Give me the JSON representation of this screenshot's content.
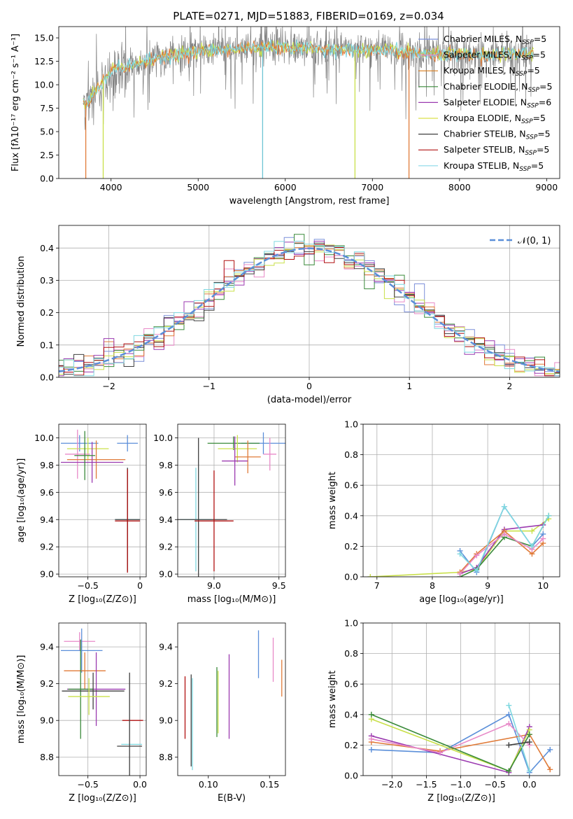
{
  "figure": {
    "title": "PLATE=0271, MJD=51883, FIBERID=0169, z=0.034"
  },
  "palette": {
    "grid": "#b0b0b0",
    "gauss": "#5b8fd9",
    "spectrum_gray": "#808080",
    "spectrum_cyan": "#7fd8e0",
    "spectrum_yellow": "#c9e04a",
    "spectrum_orange": "#e07b39"
  },
  "chart_data": [
    {
      "id": "spectrum",
      "type": "line",
      "title": "PLATE=0271, MJD=51883, FIBERID=0169, z=0.034",
      "xlabel": "wavelength [Angstrom, rest frame]",
      "ylabel": "Flux [fλ10⁻¹⁷ erg cm⁻² s⁻¹ A⁻¹]",
      "xlim": [
        3400,
        9150
      ],
      "ylim": [
        0,
        16.2
      ],
      "xticks": [
        4000,
        5000,
        6000,
        7000,
        8000,
        9000
      ],
      "yticks": [
        0.0,
        2.5,
        5.0,
        7.5,
        10.0,
        12.5,
        15.0
      ],
      "grid": false,
      "legend_position": "top-right",
      "legend": [
        {
          "name": "Chabrier MILES, N_SSP=5",
          "color": "#7b8fd9"
        },
        {
          "name": "Salpeter MILES, N_SSP=5",
          "color": "#d98fd9"
        },
        {
          "name": "Kroupa MILES, N_SSP=5",
          "color": "#d97b1a"
        },
        {
          "name": "Chabrier ELODIE, N_SSP=5",
          "color": "#3a8a3a"
        },
        {
          "name": "Salpeter ELODIE, N_SSP=6",
          "color": "#9b3ab0"
        },
        {
          "name": "Kroupa ELODIE, N_SSP=5",
          "color": "#d9e04a"
        },
        {
          "name": "Chabrier STELIB, N_SSP=5",
          "color": "#404040"
        },
        {
          "name": "Salpeter STELIB, N_SSP=5",
          "color": "#b01010"
        },
        {
          "name": "Kroupa STELIB, N_SSP=5",
          "color": "#8ad8e8"
        }
      ],
      "continuum": [
        [
          3680,
          8.5
        ],
        [
          3720,
          7.8
        ],
        [
          3800,
          9.0
        ],
        [
          3900,
          10.3
        ],
        [
          4000,
          11.4
        ],
        [
          4100,
          11.8
        ],
        [
          4200,
          12.0
        ],
        [
          4300,
          12.2
        ],
        [
          4400,
          12.5
        ],
        [
          4500,
          12.9
        ],
        [
          4600,
          13.0
        ],
        [
          4700,
          13.1
        ],
        [
          4800,
          13.3
        ],
        [
          4900,
          13.4
        ],
        [
          5000,
          13.5
        ],
        [
          5100,
          13.7
        ],
        [
          5200,
          13.6
        ],
        [
          5300,
          13.7
        ],
        [
          5500,
          13.9
        ],
        [
          5700,
          14.0
        ],
        [
          5900,
          14.1
        ],
        [
          6100,
          13.9
        ],
        [
          6300,
          13.9
        ],
        [
          6500,
          13.8
        ],
        [
          6700,
          13.7
        ],
        [
          6900,
          13.7
        ],
        [
          7100,
          13.7
        ],
        [
          7300,
          13.6
        ],
        [
          7500,
          13.4
        ],
        [
          7700,
          13.2
        ],
        [
          7900,
          13.3
        ],
        [
          8100,
          13.2
        ],
        [
          8300,
          13.1
        ],
        [
          8500,
          13.2
        ],
        [
          8700,
          13.3
        ],
        [
          8850,
          13.4
        ]
      ],
      "model_dips": [
        {
          "x": 3710,
          "color": "#e07b39"
        },
        {
          "x": 3910,
          "color": "#c9e04a"
        },
        {
          "x": 5740,
          "color": "#6ec4d4"
        },
        {
          "x": 6800,
          "color": "#c9e04a"
        },
        {
          "x": 7420,
          "color": "#e07b39"
        }
      ]
    },
    {
      "id": "residuals",
      "type": "histogram",
      "xlabel": "(data-model)/error",
      "ylabel": "Normed distribution",
      "xlim": [
        -2.5,
        2.5
      ],
      "ylim": [
        0,
        0.47
      ],
      "xticks": [
        -2,
        -1,
        0,
        1,
        2
      ],
      "yticks": [
        0.0,
        0.1,
        0.2,
        0.3,
        0.4
      ],
      "grid": true,
      "legend_position": "top-right",
      "legend": [
        {
          "name": "𝒩(0, 1)",
          "style": "dashed"
        }
      ],
      "bin_width": 0.1,
      "series_colors": [
        "#7b8fd9",
        "#e88ac8",
        "#e07b39",
        "#3a8a3a",
        "#9b3ab0",
        "#c9e04a",
        "#404040",
        "#b01010",
        "#7fd8e0"
      ]
    },
    {
      "id": "age-vs-Z",
      "type": "errorbar",
      "xlabel": "Z [log₁₀(Z/Z⊙)]",
      "ylabel": "age  [log₁₀(age/yr)]",
      "xlim": [
        -0.78,
        0.06
      ],
      "ylim": [
        8.98,
        10.1
      ],
      "xticks": [
        -0.5,
        0.0
      ],
      "yticks": [
        9.0,
        9.2,
        9.4,
        9.6,
        9.8,
        10.0
      ],
      "grid": true,
      "points": [
        {
          "x": -0.58,
          "y": 9.96,
          "xerr": 0.18,
          "yerr": 0.06,
          "color": "#5b8fd9"
        },
        {
          "x": -0.12,
          "y": 9.96,
          "xerr": 0.1,
          "yerr": 0.06,
          "color": "#5b8fd9"
        },
        {
          "x": -0.5,
          "y": 9.92,
          "xerr": 0.2,
          "yerr": 0.08,
          "color": "#c9e04a"
        },
        {
          "x": -0.6,
          "y": 9.88,
          "xerr": 0.12,
          "yerr": 0.18,
          "color": "#e88ac8"
        },
        {
          "x": -0.42,
          "y": 9.84,
          "xerr": 0.28,
          "yerr": 0.14,
          "color": "#e07b39"
        },
        {
          "x": -0.46,
          "y": 9.82,
          "xerr": 0.3,
          "yerr": 0.15,
          "color": "#9b3ab0"
        },
        {
          "x": -0.53,
          "y": 9.87,
          "xerr": 0.1,
          "yerr": 0.18,
          "color": "#3a8a3a"
        },
        {
          "x": -0.12,
          "y": 9.4,
          "xerr": 0.12,
          "yerr": 0.38,
          "color": "#7fd8e0"
        },
        {
          "x": -0.12,
          "y": 9.4,
          "xerr": 0.12,
          "yerr": 0.38,
          "color": "#404040"
        },
        {
          "x": -0.12,
          "y": 9.39,
          "xerr": 0.12,
          "yerr": 0.38,
          "color": "#b01010"
        }
      ]
    },
    {
      "id": "age-vs-mass",
      "type": "errorbar",
      "xlabel": "mass [log₁₀(M/M⊙)]",
      "ylabel": "",
      "xlim": [
        8.72,
        9.55
      ],
      "ylim": [
        8.98,
        10.1
      ],
      "xticks": [
        9.0,
        9.5
      ],
      "yticks": [
        9.0,
        9.2,
        9.4,
        9.6,
        9.8,
        10.0
      ],
      "grid": true,
      "points": [
        {
          "x": 9.38,
          "y": 9.96,
          "xerr": 0.17,
          "yerr": 0.08,
          "color": "#5b8fd9"
        },
        {
          "x": 9.15,
          "y": 9.96,
          "xerr": 0.2,
          "yerr": 0.05,
          "color": "#3a8a3a"
        },
        {
          "x": 9.18,
          "y": 9.92,
          "xerr": 0.15,
          "yerr": 0.1,
          "color": "#c9e04a"
        },
        {
          "x": 9.43,
          "y": 9.88,
          "xerr": 0.05,
          "yerr": 0.12,
          "color": "#e88ac8"
        },
        {
          "x": 9.26,
          "y": 9.86,
          "xerr": 0.1,
          "yerr": 0.12,
          "color": "#e07b39"
        },
        {
          "x": 9.16,
          "y": 9.83,
          "xerr": 0.1,
          "yerr": 0.18,
          "color": "#9b3ab0"
        },
        {
          "x": 8.86,
          "y": 9.4,
          "xerr": 0.12,
          "yerr": 0.38,
          "color": "#7fd8e0"
        },
        {
          "x": 8.88,
          "y": 9.4,
          "xerr": 0.22,
          "yerr": 0.6,
          "color": "#404040"
        },
        {
          "x": 9.0,
          "y": 9.39,
          "xerr": 0.15,
          "yerr": 0.37,
          "color": "#b01010"
        }
      ]
    },
    {
      "id": "mass-weight-vs-age",
      "type": "line",
      "xlabel": "age  [log₁₀(age/yr)]",
      "ylabel": "mass weight",
      "xlim": [
        6.75,
        10.3
      ],
      "ylim": [
        0,
        1
      ],
      "xticks": [
        7,
        8,
        9,
        10
      ],
      "yticks": [
        0.0,
        0.2,
        0.4,
        0.6,
        0.8,
        1.0
      ],
      "grid": true,
      "series": [
        {
          "color": "#c9e04a",
          "points": [
            [
              6.88,
              0.0
            ],
            [
              8.5,
              0.03
            ],
            [
              8.8,
              0.05
            ],
            [
              9.3,
              0.3
            ],
            [
              9.8,
              0.3
            ],
            [
              10.1,
              0.38
            ]
          ]
        },
        {
          "color": "#5b8fd9",
          "points": [
            [
              8.5,
              0.17
            ],
            [
              8.8,
              0.03
            ],
            [
              9.3,
              0.46
            ],
            [
              9.8,
              0.2
            ],
            [
              10.0,
              0.28
            ]
          ]
        },
        {
          "color": "#9b3ab0",
          "points": [
            [
              8.5,
              0.02
            ],
            [
              8.8,
              0.06
            ],
            [
              9.3,
              0.31
            ],
            [
              10.0,
              0.34
            ]
          ]
        },
        {
          "color": "#e07b39",
          "points": [
            [
              8.5,
              0.03
            ],
            [
              8.8,
              0.15
            ],
            [
              9.3,
              0.3
            ],
            [
              9.8,
              0.15
            ],
            [
              10.0,
              0.22
            ]
          ]
        },
        {
          "color": "#3a8a3a",
          "points": [
            [
              8.5,
              0.0
            ],
            [
              8.8,
              0.05
            ],
            [
              9.3,
              0.26
            ],
            [
              9.8,
              0.2
            ],
            [
              10.1,
              0.4
            ]
          ]
        },
        {
          "color": "#e88ac8",
          "points": [
            [
              8.5,
              0.02
            ],
            [
              8.8,
              0.14
            ],
            [
              9.3,
              0.28
            ],
            [
              9.8,
              0.18
            ],
            [
              10.0,
              0.25
            ]
          ]
        },
        {
          "color": "#7fd8e0",
          "points": [
            [
              8.5,
              0.15
            ],
            [
              8.8,
              0.04
            ],
            [
              9.3,
              0.46
            ],
            [
              9.8,
              0.2
            ],
            [
              10.1,
              0.4
            ]
          ]
        }
      ]
    },
    {
      "id": "mass-vs-Z",
      "type": "errorbar",
      "xlabel": "Z [log₁₀(Z/Z⊙)]",
      "ylabel": "mass [log₁₀(M/M⊙)]",
      "xlim": [
        -0.78,
        0.06
      ],
      "ylim": [
        8.7,
        9.53
      ],
      "xticks": [
        -0.5,
        0.0
      ],
      "yticks": [
        8.8,
        9.0,
        9.2,
        9.4
      ],
      "grid": true,
      "points": [
        {
          "x": -0.58,
          "y": 9.43,
          "xerr": 0.15,
          "yerr": 0.05,
          "color": "#e88ac8"
        },
        {
          "x": -0.56,
          "y": 9.38,
          "xerr": 0.2,
          "yerr": 0.12,
          "color": "#5b8fd9"
        },
        {
          "x": -0.53,
          "y": 9.27,
          "xerr": 0.2,
          "yerr": 0.1,
          "color": "#e07b39"
        },
        {
          "x": -0.42,
          "y": 9.17,
          "xerr": 0.28,
          "yerr": 0.2,
          "color": "#9b3ab0"
        },
        {
          "x": -0.57,
          "y": 9.17,
          "xerr": 0.12,
          "yerr": 0.27,
          "color": "#3a8a3a"
        },
        {
          "x": -0.45,
          "y": 9.16,
          "xerr": 0.3,
          "yerr": 0.1,
          "color": "#404040"
        },
        {
          "x": -0.49,
          "y": 9.13,
          "xerr": 0.2,
          "yerr": 0.1,
          "color": "#c9e04a"
        },
        {
          "x": -0.07,
          "y": 9.0,
          "xerr": 0.1,
          "yerr": 0.0,
          "color": "#b01010"
        },
        {
          "x": -0.08,
          "y": 8.87,
          "xerr": 0.1,
          "yerr": 0.0,
          "color": "#7fd8e0"
        },
        {
          "x": -0.1,
          "y": 8.86,
          "xerr": 0.12,
          "yerr": 0.4,
          "color": "#404040"
        }
      ]
    },
    {
      "id": "mass-vs-ebv",
      "type": "errorbar",
      "xlabel": "E(B-V)",
      "ylabel": "",
      "xlim": [
        0.075,
        0.163
      ],
      "ylim": [
        8.7,
        9.53
      ],
      "xticks": [
        0.1,
        0.15
      ],
      "yticks": [
        8.8,
        9.0,
        9.2,
        9.4
      ],
      "grid": false,
      "points": [
        {
          "x": 0.081,
          "y": 9.07,
          "xerr": 0,
          "yerr": 0.17,
          "color": "#b01010"
        },
        {
          "x": 0.086,
          "y": 9.0,
          "xerr": 0,
          "yerr": 0.25,
          "color": "#404040"
        },
        {
          "x": 0.087,
          "y": 8.98,
          "xerr": 0,
          "yerr": 0.25,
          "color": "#7fd8e0"
        },
        {
          "x": 0.107,
          "y": 9.1,
          "xerr": 0,
          "yerr": 0.19,
          "color": "#3a8a3a"
        },
        {
          "x": 0.108,
          "y": 9.1,
          "xerr": 0,
          "yerr": 0.17,
          "color": "#c9e04a"
        },
        {
          "x": 0.117,
          "y": 9.13,
          "xerr": 0,
          "yerr": 0.23,
          "color": "#9b3ab0"
        },
        {
          "x": 0.141,
          "y": 9.36,
          "xerr": 0,
          "yerr": 0.13,
          "color": "#5b8fd9"
        },
        {
          "x": 0.153,
          "y": 9.33,
          "xerr": 0,
          "yerr": 0.12,
          "color": "#e88ac8"
        },
        {
          "x": 0.16,
          "y": 9.23,
          "xerr": 0,
          "yerr": 0.1,
          "color": "#e07b39"
        }
      ]
    },
    {
      "id": "mass-weight-vs-Z",
      "type": "line",
      "xlabel": "Z [log₁₀(Z/Z⊙)]",
      "ylabel": "mass weight",
      "xlim": [
        -2.42,
        0.44
      ],
      "ylim": [
        0,
        1
      ],
      "xticks": [
        -2.0,
        -1.5,
        -1.0,
        -0.5,
        0.0
      ],
      "yticks": [
        0.0,
        0.2,
        0.4,
        0.6,
        0.8,
        1.0
      ],
      "grid": true,
      "series": [
        {
          "color": "#5b8fd9",
          "points": [
            [
              -2.3,
              0.17
            ],
            [
              -1.3,
              0.15
            ],
            [
              -0.3,
              0.4
            ],
            [
              0.0,
              0.02
            ],
            [
              0.3,
              0.17
            ]
          ]
        },
        {
          "color": "#e07b39",
          "points": [
            [
              -2.3,
              0.22
            ],
            [
              -1.3,
              0.16
            ],
            [
              0.0,
              0.27
            ],
            [
              0.3,
              0.04
            ]
          ]
        },
        {
          "color": "#9b3ab0",
          "points": [
            [
              -2.3,
              0.26
            ],
            [
              -0.3,
              0.02
            ],
            [
              0.0,
              0.32
            ]
          ]
        },
        {
          "color": "#e88ac8",
          "points": [
            [
              -2.3,
              0.24
            ],
            [
              -1.3,
              0.15
            ],
            [
              -0.3,
              0.34
            ],
            [
              0.0,
              0.2
            ]
          ]
        },
        {
          "color": "#c9e04a",
          "points": [
            [
              -2.3,
              0.37
            ],
            [
              -0.3,
              0.03
            ],
            [
              0.0,
              0.3
            ]
          ]
        },
        {
          "color": "#3a8a3a",
          "points": [
            [
              -2.3,
              0.4
            ],
            [
              -0.3,
              0.03
            ],
            [
              0.0,
              0.27
            ]
          ]
        },
        {
          "color": "#7fd8e0",
          "points": [
            [
              -0.3,
              0.46
            ],
            [
              0.0,
              0.03
            ]
          ]
        },
        {
          "color": "#404040",
          "points": [
            [
              -0.3,
              0.2
            ],
            [
              0.0,
              0.22
            ]
          ]
        }
      ]
    }
  ]
}
